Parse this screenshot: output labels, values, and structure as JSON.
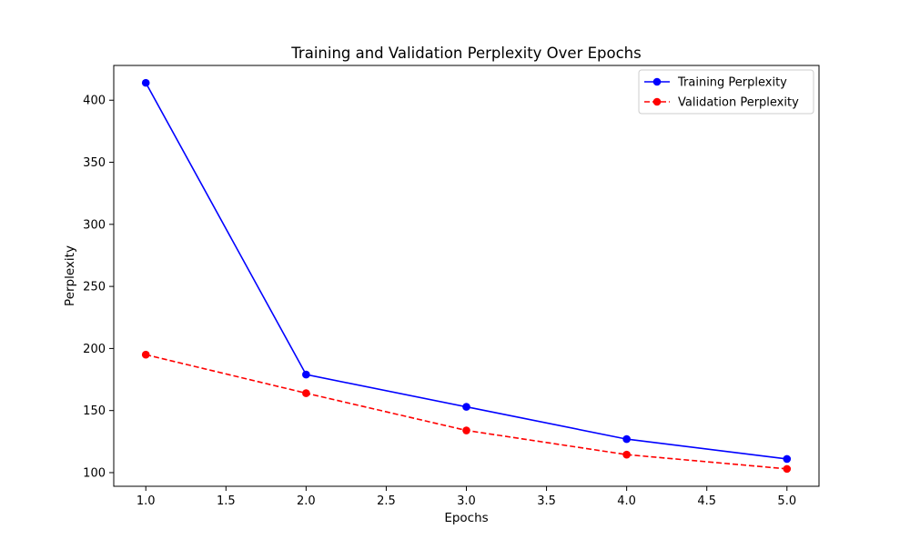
{
  "chart_data": {
    "type": "line",
    "title": "Training and Validation Perplexity Over Epochs",
    "xlabel": "Epochs",
    "ylabel": "Perplexity",
    "x": [
      1,
      2,
      3,
      4,
      5
    ],
    "xlim": [
      0.8,
      5.2
    ],
    "ylim": [
      89,
      428
    ],
    "xticks": [
      1.0,
      1.5,
      2.0,
      2.5,
      3.0,
      3.5,
      4.0,
      4.5,
      5.0
    ],
    "xtick_labels": [
      "1.0",
      "1.5",
      "2.0",
      "2.5",
      "3.0",
      "3.5",
      "4.0",
      "4.5",
      "5.0"
    ],
    "yticks": [
      100,
      150,
      200,
      250,
      300,
      350,
      400
    ],
    "ytick_labels": [
      "100",
      "150",
      "200",
      "250",
      "300",
      "350",
      "400"
    ],
    "grid": false,
    "legend_position": "top-right",
    "series": [
      {
        "name": "Training Perplexity",
        "values": [
          414,
          179,
          153,
          127,
          111
        ],
        "color": "#0000ff",
        "line_style": "solid",
        "marker": "circle"
      },
      {
        "name": "Validation Perplexity",
        "values": [
          195,
          164,
          134,
          114.5,
          103
        ],
        "color": "#ff0000",
        "line_style": "dashed",
        "marker": "circle"
      }
    ]
  }
}
